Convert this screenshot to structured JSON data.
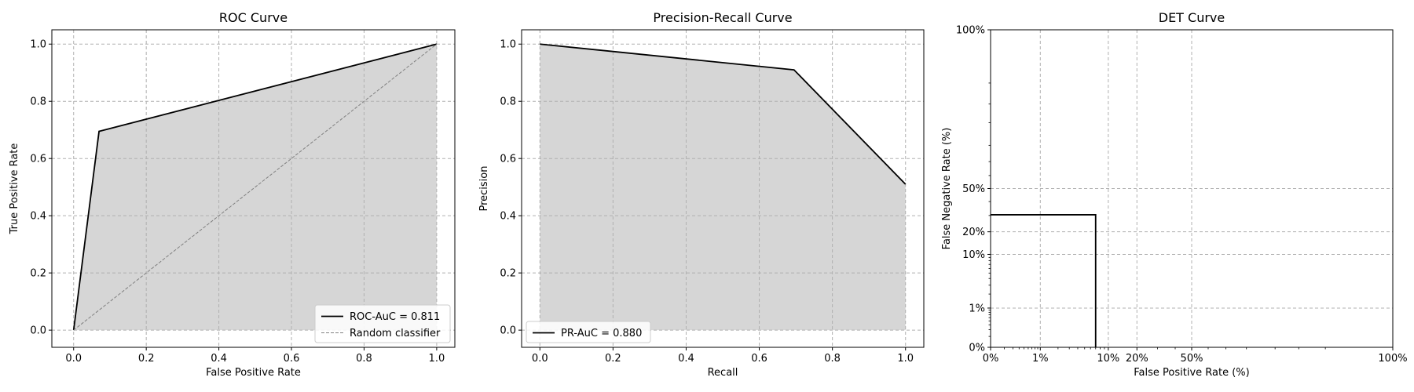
{
  "chart_data": [
    {
      "type": "area",
      "title": "ROC Curve",
      "xlabel": "False Positive Rate",
      "ylabel": "True Positive Rate",
      "xlim": [
        -0.06,
        1.05
      ],
      "ylim": [
        -0.06,
        1.05
      ],
      "xticks": [
        0.0,
        0.2,
        0.4,
        0.6,
        0.8,
        1.0
      ],
      "xtick_labels": [
        "0.0",
        "0.2",
        "0.4",
        "0.6",
        "0.8",
        "1.0"
      ],
      "yticks": [
        0.0,
        0.2,
        0.4,
        0.6,
        0.8,
        1.0
      ],
      "ytick_labels": [
        "0.0",
        "0.2",
        "0.4",
        "0.6",
        "0.8",
        "1.0"
      ],
      "grid": true,
      "legend_position": "bottom-right",
      "series": [
        {
          "name": "ROC-AuC = 0.811",
          "style": "solid",
          "color": "#000000",
          "fill": "#d6d6d6",
          "x": [
            0.0,
            0.07,
            1.0
          ],
          "y": [
            0.0,
            0.695,
            1.0
          ]
        },
        {
          "name": "Random classifier",
          "style": "dashed",
          "color": "#808080",
          "x": [
            0.0,
            1.0
          ],
          "y": [
            0.0,
            1.0
          ]
        }
      ]
    },
    {
      "type": "area",
      "title": "Precision-Recall Curve",
      "xlabel": "Recall",
      "ylabel": "Precision",
      "xlim": [
        -0.05,
        1.05
      ],
      "ylim": [
        -0.06,
        1.05
      ],
      "xticks": [
        0.0,
        0.2,
        0.4,
        0.6,
        0.8,
        1.0
      ],
      "xtick_labels": [
        "0.0",
        "0.2",
        "0.4",
        "0.6",
        "0.8",
        "1.0"
      ],
      "yticks": [
        0.0,
        0.2,
        0.4,
        0.6,
        0.8,
        1.0
      ],
      "ytick_labels": [
        "0.0",
        "0.2",
        "0.4",
        "0.6",
        "0.8",
        "1.0"
      ],
      "grid": true,
      "legend_position": "bottom-left",
      "series": [
        {
          "name": "PR-AuC = 0.880",
          "style": "solid",
          "color": "#000000",
          "fill": "#d6d6d6",
          "x": [
            0.0,
            0.695,
            1.0
          ],
          "y": [
            1.0,
            0.91,
            0.51
          ]
        }
      ]
    },
    {
      "type": "line",
      "title": "DET Curve",
      "xlabel": "False Positive Rate (%)",
      "ylabel": "False Negative Rate (%)",
      "xscale": "probit",
      "yscale": "probit",
      "xlim": [
        0.001,
        0.999
      ],
      "ylim": [
        0.001,
        0.999
      ],
      "xticks": [
        0.001,
        0.01,
        0.1,
        0.2,
        0.5,
        0.999
      ],
      "xtick_labels": [
        "0%",
        "1%",
        "10%",
        "20%",
        "50%",
        "100%"
      ],
      "yticks": [
        0.001,
        0.01,
        0.1,
        0.2,
        0.5,
        0.999
      ],
      "ytick_labels": [
        "0%",
        "1%",
        "10%",
        "20%",
        "50%",
        "100%"
      ],
      "grid": true,
      "series": [
        {
          "style": "solid",
          "color": "#000000",
          "x": [
            0.001,
            0.07,
            0.07
          ],
          "y": [
            0.305,
            0.305,
            0.001
          ]
        }
      ]
    }
  ]
}
